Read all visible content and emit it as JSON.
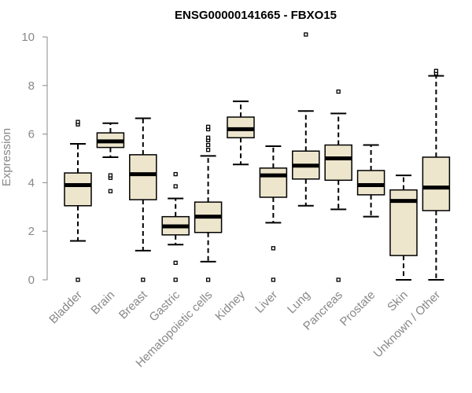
{
  "chart_data": {
    "type": "boxplot",
    "title": "ENSG00000141665 - FBXO15",
    "xlabel": "",
    "ylabel": "Expression",
    "ylim": [
      0,
      10
    ],
    "yticks": [
      0,
      2,
      4,
      6,
      8,
      10
    ],
    "colors": {
      "box_fill": "#ede6cd",
      "stroke": "#000000",
      "axis": "#888888"
    },
    "categories": [
      "Bladder",
      "Brain",
      "Breast",
      "Gastric",
      "Hematopoietic cells",
      "Kidney",
      "Liver",
      "Lung",
      "Pancreas",
      "Prostate",
      "Skin",
      "Unknown / Other"
    ],
    "boxes": [
      {
        "category": "Bladder",
        "q1": 3.05,
        "median": 3.9,
        "q3": 4.4,
        "whisker_low": 1.6,
        "whisker_high": 5.6,
        "outliers": [
          0.0,
          6.4,
          6.5
        ]
      },
      {
        "category": "Brain",
        "q1": 5.45,
        "median": 5.7,
        "q3": 6.05,
        "whisker_low": 5.05,
        "whisker_high": 6.45,
        "outliers": [
          3.65,
          4.2,
          4.3
        ]
      },
      {
        "category": "Breast",
        "q1": 3.3,
        "median": 4.35,
        "q3": 5.15,
        "whisker_low": 1.2,
        "whisker_high": 6.65,
        "outliers": [
          0.0
        ]
      },
      {
        "category": "Gastric",
        "q1": 1.85,
        "median": 2.2,
        "q3": 2.6,
        "whisker_low": 1.45,
        "whisker_high": 3.35,
        "outliers": [
          0.0,
          0.7,
          3.85,
          4.35
        ]
      },
      {
        "category": "Hematopoietic cells",
        "q1": 1.95,
        "median": 2.6,
        "q3": 3.2,
        "whisker_low": 0.75,
        "whisker_high": 5.1,
        "outliers": [
          0.0,
          5.35,
          5.55,
          5.75,
          5.85,
          6.2,
          6.3
        ]
      },
      {
        "category": "Kidney",
        "q1": 5.85,
        "median": 6.2,
        "q3": 6.7,
        "whisker_low": 4.75,
        "whisker_high": 7.35,
        "outliers": []
      },
      {
        "category": "Liver",
        "q1": 3.4,
        "median": 4.3,
        "q3": 4.6,
        "whisker_low": 2.35,
        "whisker_high": 5.5,
        "outliers": [
          0.0,
          1.3
        ]
      },
      {
        "category": "Lung",
        "q1": 4.15,
        "median": 4.7,
        "q3": 5.3,
        "whisker_low": 3.05,
        "whisker_high": 6.95,
        "outliers": [
          10.1
        ]
      },
      {
        "category": "Pancreas",
        "q1": 4.1,
        "median": 5.0,
        "q3": 5.55,
        "whisker_low": 2.9,
        "whisker_high": 6.85,
        "outliers": [
          0.0,
          7.75
        ]
      },
      {
        "category": "Prostate",
        "q1": 3.5,
        "median": 3.9,
        "q3": 4.5,
        "whisker_low": 2.6,
        "whisker_high": 5.55,
        "outliers": []
      },
      {
        "category": "Skin",
        "q1": 1.0,
        "median": 3.25,
        "q3": 3.7,
        "whisker_low": 0.0,
        "whisker_high": 4.3,
        "outliers": []
      },
      {
        "category": "Unknown / Other",
        "q1": 2.85,
        "median": 3.8,
        "q3": 5.05,
        "whisker_low": 0.0,
        "whisker_high": 8.4,
        "outliers": [
          8.5,
          8.6
        ]
      }
    ]
  }
}
